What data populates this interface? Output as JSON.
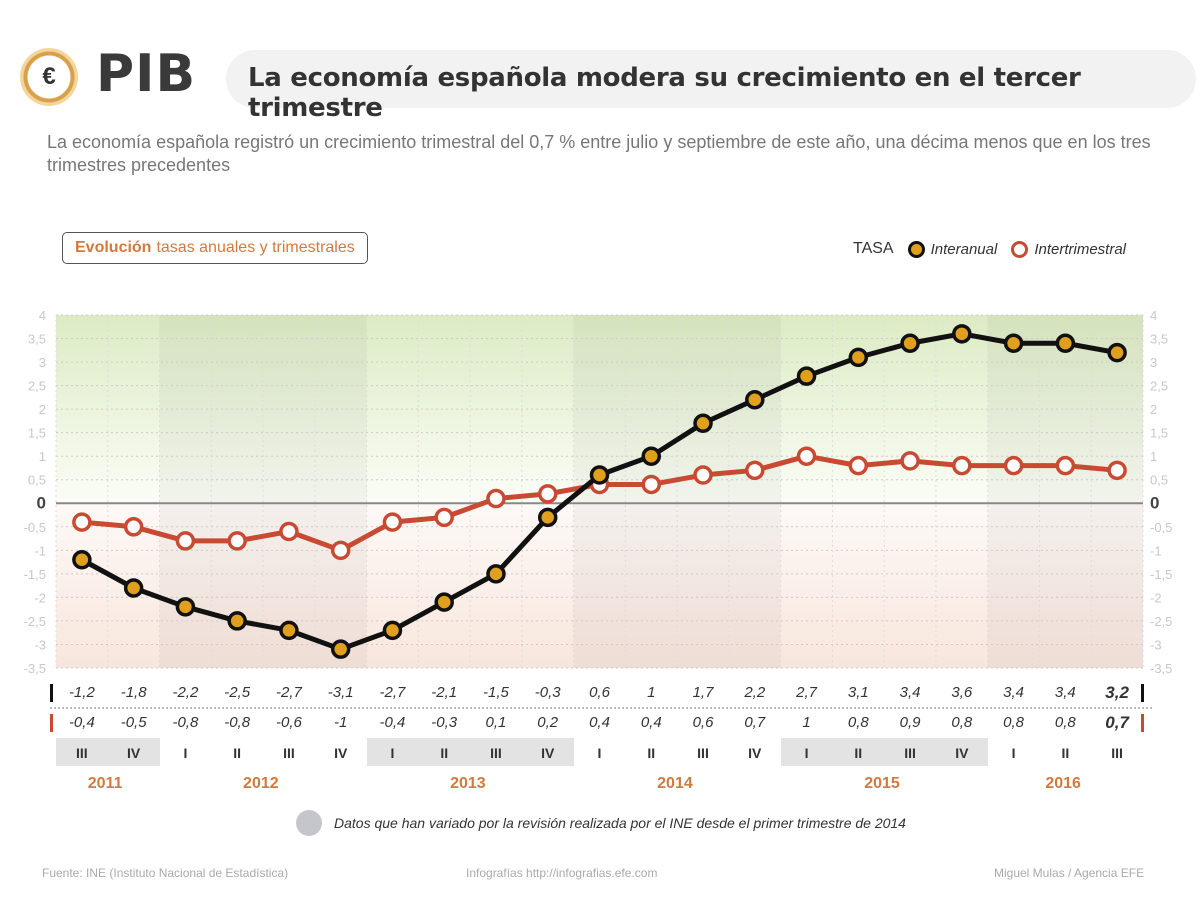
{
  "header": {
    "logo_symbol": "€",
    "logo_text": "PIB",
    "title": "La economía española modera su crecimiento en el tercer trimestre"
  },
  "subtitle": "La economía española registró un crecimiento trimestral del 0,7 % entre julio y septiembre de este año, una décima menos que en los tres trimestres precedentes",
  "section_label": {
    "bold": "Evolución",
    "rest": "tasas anuales y trimestrales"
  },
  "legend": {
    "prefix": "TASA",
    "items": [
      {
        "label": "Interanual",
        "color": "#111111",
        "fill": "#e0a01e"
      },
      {
        "label": "Intertrimestral",
        "color": "#c84a33",
        "fill": "#ffffff"
      }
    ]
  },
  "chart_data": {
    "type": "line",
    "title": "Evolución tasas anuales y trimestrales",
    "xlabel": "",
    "ylabel": "",
    "ylim": [
      -3.5,
      4
    ],
    "yticks": [
      4,
      3.5,
      3,
      2.5,
      2,
      1.5,
      1,
      0.5,
      0,
      -0.5,
      -1,
      -1.5,
      -2,
      -2.5,
      -3,
      -3.5
    ],
    "ytick_labels": [
      "4",
      "3,5",
      "3",
      "2,5",
      "2",
      "1,5",
      "1",
      "0,5",
      "0",
      "-0,5",
      "-1",
      "-1,5",
      "-2",
      "-2,5",
      "-3",
      "-3,5"
    ],
    "grid": true,
    "legend_position": "top-right",
    "categories": [
      "III",
      "IV",
      "I",
      "II",
      "III",
      "IV",
      "I",
      "II",
      "III",
      "IV",
      "I",
      "II",
      "III",
      "IV",
      "I",
      "II",
      "III",
      "IV",
      "I",
      "II",
      "III"
    ],
    "years": [
      {
        "label": "2011",
        "start": 0,
        "count": 2
      },
      {
        "label": "2012",
        "start": 2,
        "count": 4
      },
      {
        "label": "2013",
        "start": 6,
        "count": 4
      },
      {
        "label": "2014",
        "start": 10,
        "count": 4
      },
      {
        "label": "2015",
        "start": 14,
        "count": 4
      },
      {
        "label": "2016",
        "start": 18,
        "count": 3
      }
    ],
    "series": [
      {
        "name": "Interanual",
        "values": [
          -1.2,
          -1.8,
          -2.2,
          -2.5,
          -2.7,
          -3.1,
          -2.7,
          -2.1,
          -1.5,
          -0.3,
          0.6,
          1,
          1.7,
          2.2,
          2.7,
          3.1,
          3.4,
          3.6,
          3.4,
          3.4,
          3.2
        ],
        "labels": [
          "-1,2",
          "-1,8",
          "-2,2",
          "-2,5",
          "-2,7",
          "-3,1",
          "-2,7",
          "-2,1",
          "-1,5",
          "-0,3",
          "0,6",
          "1",
          "1,7",
          "2,2",
          "2,7",
          "3,1",
          "3,4",
          "3,6",
          "3,4",
          "3,4",
          "3,2"
        ],
        "revised": [
          false,
          false,
          false,
          false,
          false,
          false,
          false,
          false,
          false,
          false,
          true,
          true,
          false,
          true,
          false,
          false,
          false,
          true,
          true,
          true,
          true
        ],
        "line_color": "#111111",
        "marker_fill": "#e0a01e"
      },
      {
        "name": "Intertrimestral",
        "values": [
          -0.4,
          -0.5,
          -0.8,
          -0.8,
          -0.6,
          -1,
          -0.4,
          -0.3,
          0.1,
          0.2,
          0.4,
          0.4,
          0.6,
          0.7,
          1,
          0.8,
          0.9,
          0.8,
          0.8,
          0.8,
          0.7
        ],
        "labels": [
          "-0,4",
          "-0,5",
          "-0,8",
          "-0,8",
          "-0,6",
          "-1",
          "-0,4",
          "-0,3",
          "0,1",
          "0,2",
          "0,4",
          "0,4",
          "0,6",
          "0,7",
          "1",
          "0,8",
          "0,9",
          "0,8",
          "0,8",
          "0,8",
          "0,7"
        ],
        "revised": [
          false,
          false,
          false,
          false,
          false,
          false,
          false,
          false,
          false,
          false,
          false,
          true,
          false,
          false,
          true,
          true,
          true,
          false,
          true,
          true,
          true
        ],
        "line_color": "#c84a33",
        "marker_fill": "#ffffff"
      }
    ]
  },
  "note": "Datos que han variado por la revisión realizada por el INE desde el primer trimestre de 2014",
  "footer": {
    "source": "Fuente: INE (Instituto Nacional de Estadística)",
    "web": "Infografías http://infografias.efe.com",
    "author": "Miguel Mulas / Agencia EFE"
  }
}
